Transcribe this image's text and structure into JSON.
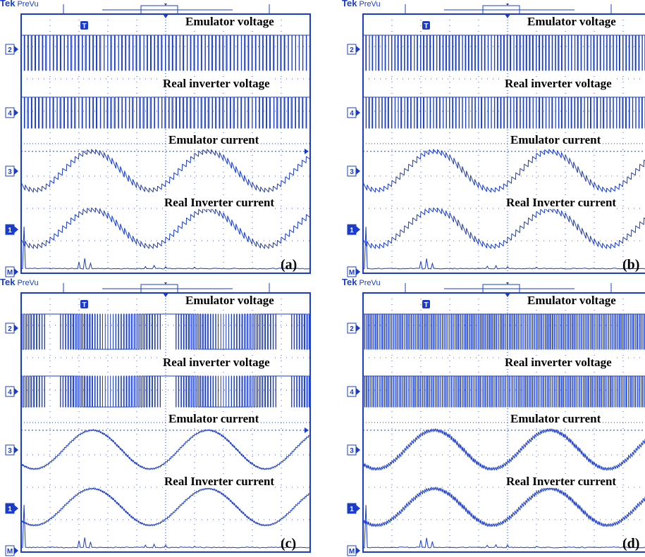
{
  "brand": {
    "tek": "Tek",
    "prevu": "PreVu"
  },
  "colors": {
    "trace": "#1a3cc8",
    "grid": "#1a3cc8",
    "frame": "#1a3cc8",
    "background": "#ffffff"
  },
  "markers": {
    "trigger": "T",
    "math": "M",
    "ch1": "1",
    "ch2": "2",
    "ch3": "3",
    "ch4": "4"
  },
  "chart_data": [
    {
      "type": "line",
      "panel": "(a)",
      "labels": [
        "Emulator voltage",
        "Real inverter voltage",
        "Emulator current",
        "Real Inverter current"
      ],
      "series": [
        {
          "name": "Emulator voltage",
          "kind": "pwm",
          "pulses": 80,
          "density": "low"
        },
        {
          "name": "Real inverter voltage",
          "kind": "pwm",
          "pulses": 80,
          "density": "low"
        },
        {
          "name": "Emulator current",
          "kind": "sine",
          "cycles": 2.5,
          "ripple": "high"
        },
        {
          "name": "Real Inverter current",
          "kind": "sine",
          "cycles": 2.5,
          "ripple": "high"
        }
      ],
      "x_divisions": 10,
      "y_divisions": 8,
      "grid": true
    },
    {
      "type": "line",
      "panel": "(b)",
      "labels": [
        "Emulator voltage",
        "Real inverter voltage",
        "Emulator current",
        "Real Inverter current"
      ],
      "series": [
        {
          "name": "Emulator voltage",
          "kind": "pwm",
          "pulses": 90,
          "density": "medium"
        },
        {
          "name": "Real inverter voltage",
          "kind": "pwm",
          "pulses": 90,
          "density": "medium"
        },
        {
          "name": "Emulator current",
          "kind": "sine",
          "cycles": 2.5,
          "ripple": "high"
        },
        {
          "name": "Real Inverter current",
          "kind": "sine",
          "cycles": 2.5,
          "ripple": "high"
        }
      ],
      "x_divisions": 10,
      "y_divisions": 8,
      "grid": true
    },
    {
      "type": "line",
      "panel": "(c)",
      "labels": [
        "Emulator voltage",
        "Real inverter voltage",
        "Emulator current",
        "Real Inverter current"
      ],
      "series": [
        {
          "name": "Emulator voltage",
          "kind": "pwm-sinusoidal",
          "pulses": 110,
          "density": "medium"
        },
        {
          "name": "Real inverter voltage",
          "kind": "pwm-sinusoidal",
          "pulses": 110,
          "density": "medium"
        },
        {
          "name": "Emulator current",
          "kind": "sine",
          "cycles": 2.5,
          "ripple": "low"
        },
        {
          "name": "Real Inverter current",
          "kind": "sine",
          "cycles": 2.5,
          "ripple": "low"
        }
      ],
      "x_divisions": 10,
      "y_divisions": 8,
      "grid": true
    },
    {
      "type": "line",
      "panel": "(d)",
      "labels": [
        "Emulator voltage",
        "Real inverter voltage",
        "Emulator current",
        "Real Inverter current"
      ],
      "series": [
        {
          "name": "Emulator voltage",
          "kind": "pwm",
          "pulses": 160,
          "density": "high"
        },
        {
          "name": "Real inverter voltage",
          "kind": "pwm",
          "pulses": 160,
          "density": "high"
        },
        {
          "name": "Emulator current",
          "kind": "sine",
          "cycles": 2.5,
          "ripple": "medium"
        },
        {
          "name": "Real Inverter current",
          "kind": "sine",
          "cycles": 2.5,
          "ripple": "medium"
        }
      ],
      "x_divisions": 10,
      "y_divisions": 8,
      "grid": true
    }
  ]
}
